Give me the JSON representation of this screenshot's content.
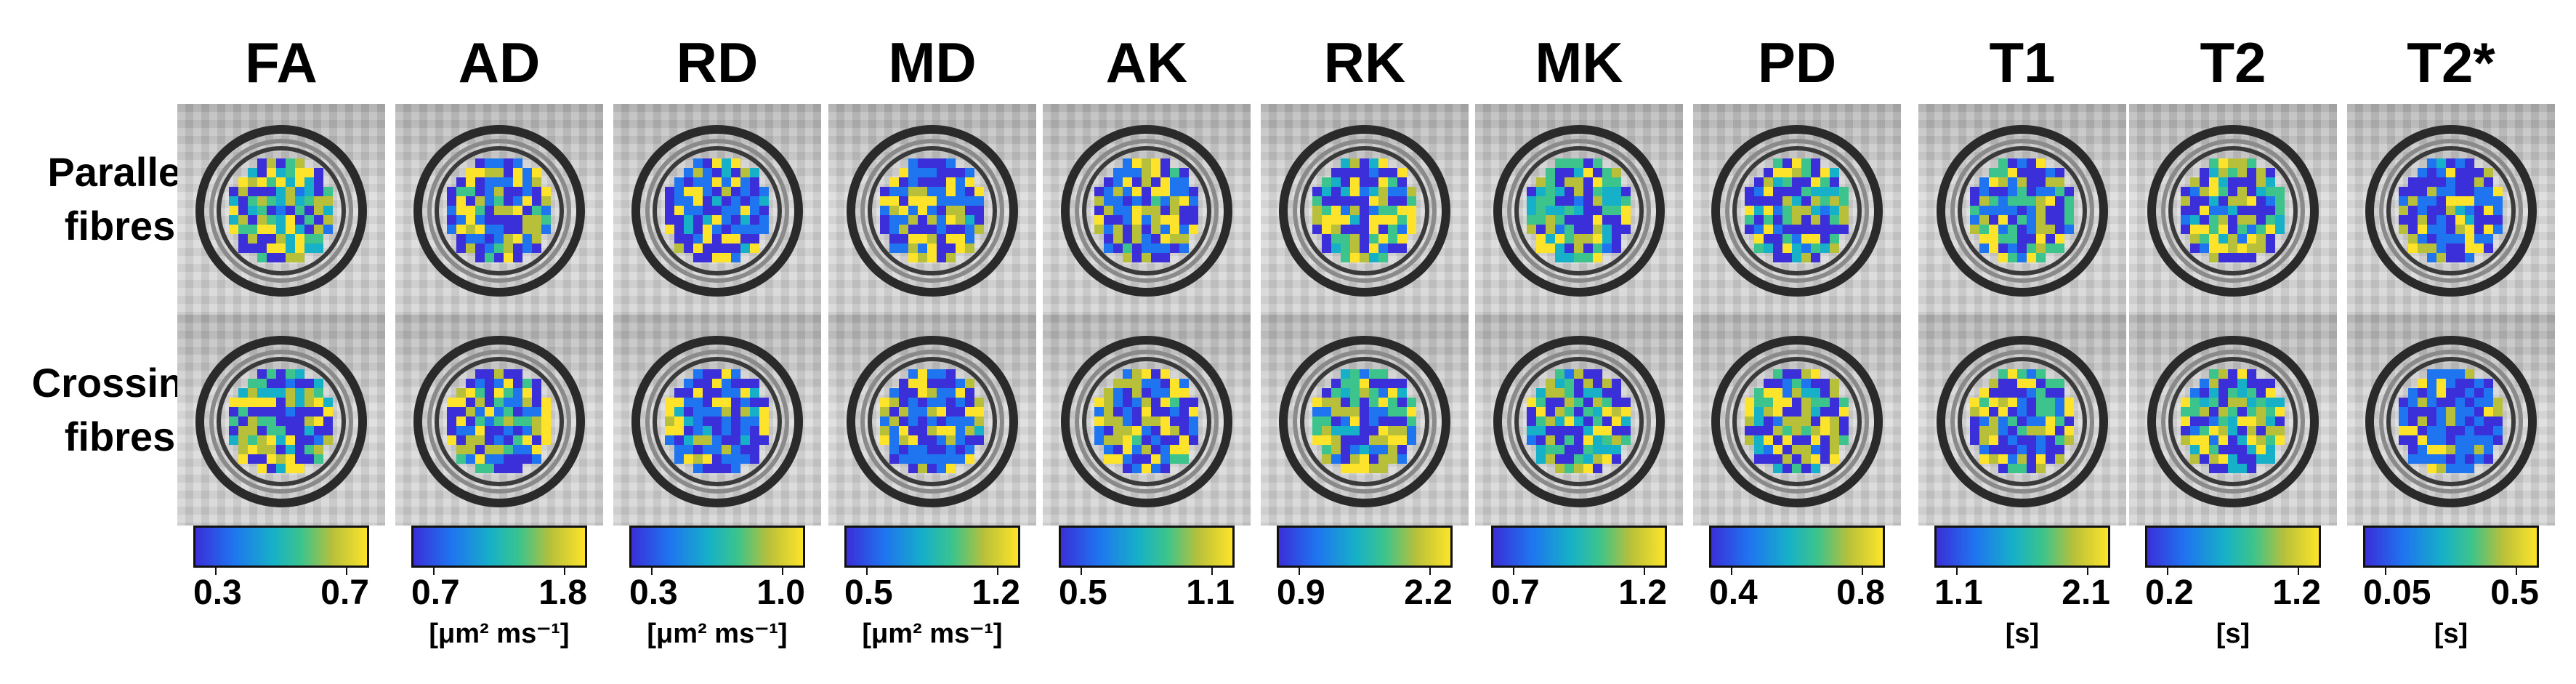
{
  "row_labels": [
    {
      "line1": "Parallel",
      "line2": "fibres"
    },
    {
      "line1": "Crossing",
      "line2": "fibres"
    }
  ],
  "columns": [
    {
      "title": "FA",
      "min": "0.3",
      "max": "0.7",
      "unit": ""
    },
    {
      "title": "AD",
      "min": "0.7",
      "max": "1.8",
      "unit": "[μm² ms⁻¹]"
    },
    {
      "title": "RD",
      "min": "0.3",
      "max": "1.0",
      "unit": "[μm² ms⁻¹]"
    },
    {
      "title": "MD",
      "min": "0.5",
      "max": "1.2",
      "unit": "[μm² ms⁻¹]"
    },
    {
      "title": "AK",
      "min": "0.5",
      "max": "1.1",
      "unit": ""
    },
    {
      "title": "RK",
      "min": "0.9",
      "max": "2.2",
      "unit": ""
    },
    {
      "title": "MK",
      "min": "0.7",
      "max": "1.2",
      "unit": ""
    },
    {
      "title": "PD",
      "min": "0.4",
      "max": "0.8",
      "unit": ""
    },
    {
      "title": "T1",
      "min": "1.1",
      "max": "2.1",
      "unit": "[s]"
    },
    {
      "title": "T2",
      "min": "0.2",
      "max": "1.2",
      "unit": "[s]"
    },
    {
      "title": "T2*",
      "min": "0.05",
      "max": "0.5",
      "unit": "[s]"
    }
  ],
  "colormap": [
    "#3a2fd8",
    "#1f74f0",
    "#16b0c8",
    "#3cc48c",
    "#b8c03a",
    "#fde42a"
  ]
}
